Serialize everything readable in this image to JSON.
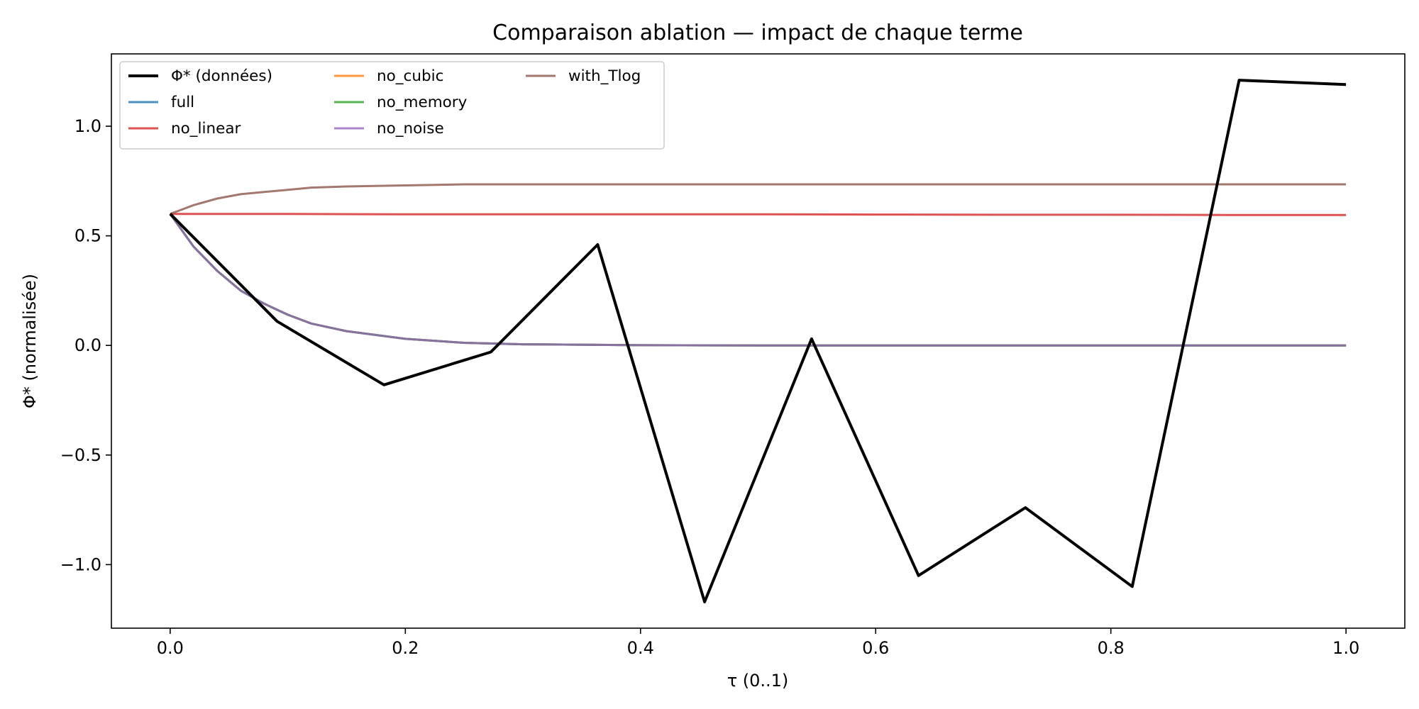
{
  "chart_data": {
    "type": "line",
    "title": "Comparaison ablation — impact de chaque terme",
    "xlabel": "τ (0..1)",
    "ylabel": "Φ* (normalisée)",
    "xlim": [
      -0.05,
      1.05
    ],
    "ylim": [
      -1.29,
      1.33
    ],
    "xticks": [
      {
        "value": 0.0,
        "label": "0.0"
      },
      {
        "value": 0.2,
        "label": "0.2"
      },
      {
        "value": 0.4,
        "label": "0.4"
      },
      {
        "value": 0.6,
        "label": "0.6"
      },
      {
        "value": 0.8,
        "label": "0.8"
      },
      {
        "value": 1.0,
        "label": "1.0"
      }
    ],
    "yticks": [
      {
        "value": -1.0,
        "label": "−1.0"
      },
      {
        "value": -0.5,
        "label": "−0.5"
      },
      {
        "value": 0.0,
        "label": "0.0"
      },
      {
        "value": 0.5,
        "label": "0.5"
      },
      {
        "value": 1.0,
        "label": "1.0"
      }
    ],
    "grid": false,
    "legend": {
      "position": "top-left",
      "columns": 3
    },
    "series": [
      {
        "name": "Φ* (données)",
        "color": "#000000",
        "kind": "data",
        "x": [
          0.0,
          0.0909,
          0.1818,
          0.2727,
          0.3636,
          0.4545,
          0.5455,
          0.6364,
          0.7273,
          0.8182,
          0.9091,
          1.0
        ],
        "y": [
          0.6,
          0.11,
          -0.18,
          -0.03,
          0.46,
          -1.17,
          0.03,
          -1.05,
          -0.74,
          -1.1,
          1.21,
          1.19
        ]
      },
      {
        "name": "full",
        "color": "#1f77b4",
        "kind": "model",
        "x": [
          0.0,
          0.02,
          0.04,
          0.06,
          0.08,
          0.1,
          0.12,
          0.15,
          0.2,
          0.25,
          0.3,
          0.4,
          0.5,
          0.6,
          0.7,
          0.8,
          0.9,
          1.0
        ],
        "y": [
          0.6,
          0.45,
          0.34,
          0.25,
          0.19,
          0.14,
          0.1,
          0.065,
          0.03,
          0.012,
          0.005,
          0.001,
          0.0,
          0.0,
          0.0,
          0.0,
          0.0,
          0.0
        ]
      },
      {
        "name": "no_linear",
        "color": "#d62728",
        "kind": "model",
        "x": [
          0.0,
          0.1,
          0.2,
          0.3,
          0.4,
          0.5,
          0.6,
          0.7,
          0.8,
          0.9,
          1.0
        ],
        "y": [
          0.6,
          0.6,
          0.598,
          0.598,
          0.598,
          0.598,
          0.597,
          0.596,
          0.596,
          0.595,
          0.595
        ]
      },
      {
        "name": "no_cubic",
        "color": "#ff7f0e",
        "kind": "model",
        "x": [
          0.0,
          0.02,
          0.04,
          0.06,
          0.08,
          0.1,
          0.12,
          0.15,
          0.2,
          0.25,
          0.3,
          0.4,
          0.5,
          0.6,
          0.7,
          0.8,
          0.9,
          1.0
        ],
        "y": [
          0.6,
          0.45,
          0.34,
          0.25,
          0.19,
          0.14,
          0.1,
          0.065,
          0.03,
          0.012,
          0.005,
          0.001,
          0.0,
          0.0,
          0.0,
          0.0,
          0.0,
          0.0
        ]
      },
      {
        "name": "no_memory",
        "color": "#2ca02c",
        "kind": "model",
        "x": [
          0.0,
          0.02,
          0.04,
          0.06,
          0.08,
          0.1,
          0.12,
          0.15,
          0.2,
          0.25,
          0.3,
          0.4,
          0.5,
          0.6,
          0.7,
          0.8,
          0.9,
          1.0
        ],
        "y": [
          0.6,
          0.45,
          0.34,
          0.25,
          0.19,
          0.14,
          0.1,
          0.065,
          0.03,
          0.012,
          0.005,
          0.001,
          0.0,
          0.0,
          0.0,
          0.0,
          0.0,
          0.0
        ]
      },
      {
        "name": "no_noise",
        "color": "#9467bd",
        "kind": "model",
        "x": [
          0.0,
          0.02,
          0.04,
          0.06,
          0.08,
          0.1,
          0.12,
          0.15,
          0.2,
          0.25,
          0.3,
          0.4,
          0.5,
          0.6,
          0.7,
          0.8,
          0.9,
          1.0
        ],
        "y": [
          0.6,
          0.45,
          0.34,
          0.25,
          0.19,
          0.14,
          0.1,
          0.065,
          0.03,
          0.012,
          0.005,
          0.001,
          0.0,
          0.0,
          0.0,
          0.0,
          0.0,
          0.0
        ]
      },
      {
        "name": "with_Tlog",
        "color": "#8c564b",
        "kind": "model",
        "x": [
          0.0,
          0.02,
          0.04,
          0.06,
          0.08,
          0.1,
          0.12,
          0.15,
          0.2,
          0.25,
          0.3,
          0.4,
          0.5,
          0.6,
          0.7,
          0.8,
          0.9,
          1.0
        ],
        "y": [
          0.6,
          0.64,
          0.67,
          0.69,
          0.7,
          0.71,
          0.72,
          0.725,
          0.73,
          0.735,
          0.735,
          0.735,
          0.735,
          0.735,
          0.735,
          0.735,
          0.735,
          0.735
        ]
      }
    ]
  }
}
